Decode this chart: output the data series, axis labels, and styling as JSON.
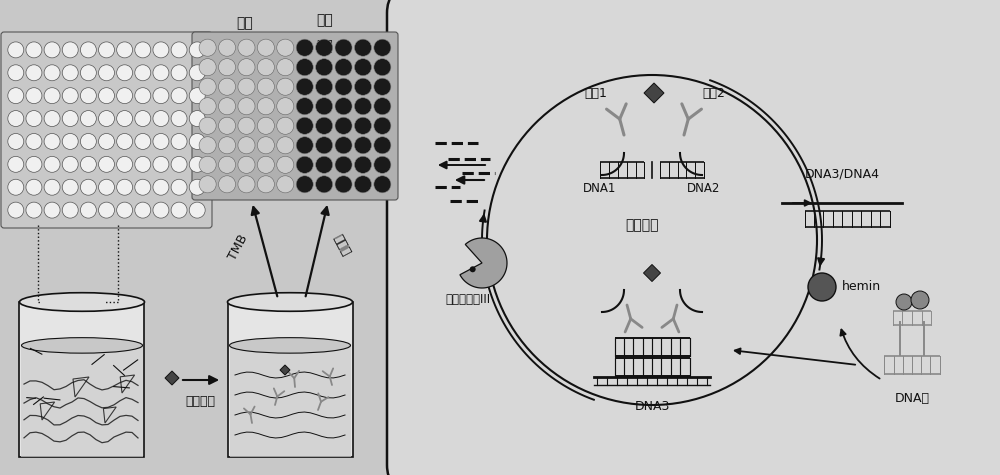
{
  "fig_bg": "#c8c8c8",
  "panel_bg": "#d0d0d0",
  "box_bg": "#d8d8d8",
  "plate_bg": "#c0c0c0",
  "plate_dark_bg": "#888888",
  "circle_light": "#f5f5f5",
  "circle_dark": "#222222",
  "circle_gray": "#888888",
  "BK": "#111111",
  "GR": "#888888",
  "DGR": "#444444",
  "labels": {
    "bise": "比色",
    "chemilum_1": "化学",
    "chemilum_2": "发光",
    "TMB": "TMB",
    "luminol": "鲁米诺",
    "target": "靶标蛋白",
    "antibody1": "抗体1",
    "antibody2": "抗体2",
    "DNA1": "DNA1",
    "DNA2": "DNA2",
    "DNA3": "DNA3",
    "DNA34": "DNA3/DNA4",
    "enzyme_cycle": "酶切循环",
    "exo3": "核酸外切酶III",
    "hemin": "hemin",
    "DNAzyme": "DNA酶"
  }
}
